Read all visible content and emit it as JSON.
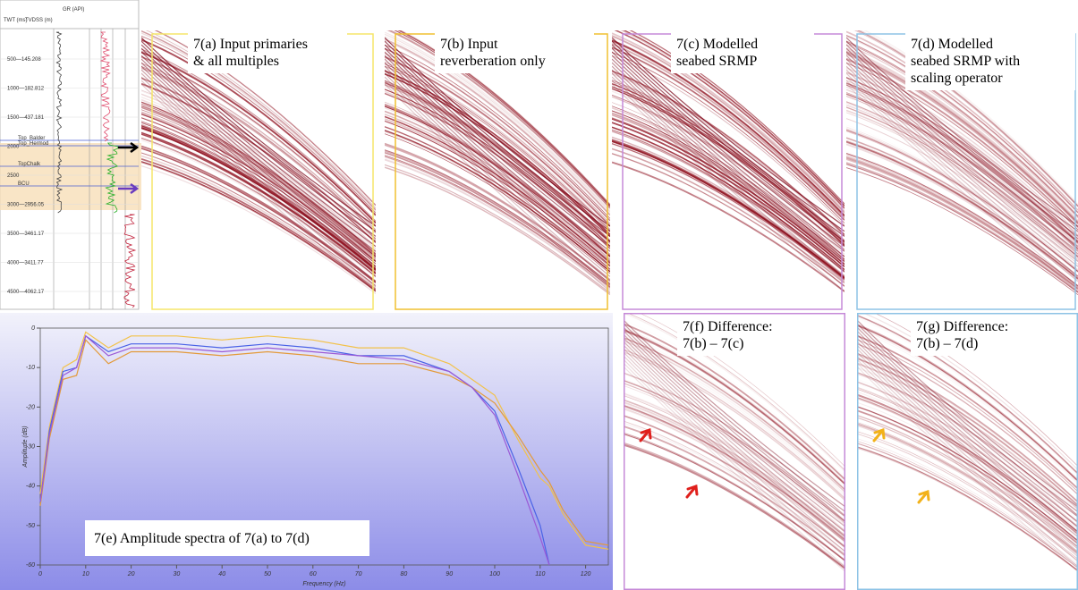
{
  "well_log": {
    "header": [
      "TWT (ms)",
      "TVDSS (m)",
      "GR (API)"
    ],
    "depth_labels": [
      "500—145.208",
      "1000—182.812",
      "1500—437.181",
      "2000",
      "2500",
      "3000—2956.05",
      "3500—3461.17",
      "4000—3411.77",
      "4500—4062.17"
    ],
    "horizons": [
      "Top_Balder",
      "Top_Hermod",
      "TopChalk",
      "BCU"
    ]
  },
  "panels": [
    {
      "caption": [
        "7(a) Input primaries",
        "& all multiples"
      ]
    },
    {
      "caption": [
        "7(b) Input",
        "reverberation only"
      ]
    },
    {
      "caption": [
        "7(c) Modelled",
        "seabed SRMP"
      ]
    },
    {
      "caption": [
        "7(d) Modelled",
        "seabed SRMP with",
        "scaling operator"
      ]
    }
  ],
  "difference_panels": [
    {
      "caption": [
        "7(f) Difference:",
        "7(b) – 7(c)"
      ]
    },
    {
      "caption": [
        "7(g) Difference:",
        "7(b) – 7(d)"
      ]
    }
  ],
  "spectrum": {
    "caption": "7(e) Amplitude spectra of 7(a) to 7(d)",
    "x_label": "Frequency (Hz)",
    "y_label": "Amplitude (dB)",
    "xlim": [
      0,
      125
    ],
    "ylim": [
      -60,
      0
    ],
    "xticks": [
      0,
      10,
      20,
      30,
      40,
      50,
      60,
      70,
      80,
      90,
      100,
      110,
      120
    ],
    "yticks": [
      0,
      -10,
      -20,
      -30,
      -40,
      -50,
      -60
    ],
    "x": [
      0,
      2,
      5,
      8,
      10,
      15,
      20,
      25,
      30,
      40,
      50,
      60,
      70,
      80,
      90,
      95,
      100,
      105,
      110,
      112,
      115,
      120,
      125
    ],
    "series": [
      {
        "color": "#f2c24a",
        "values": [
          -42,
          -25,
          -10,
          -8,
          -1,
          -5,
          -2,
          -2,
          -2,
          -3,
          -2,
          -3,
          -5,
          -5,
          -9,
          -13,
          -17,
          -28,
          -38,
          -40,
          -47,
          -55,
          -56
        ]
      },
      {
        "color": "#e39a3a",
        "values": [
          -45,
          -28,
          -13,
          -12,
          -3,
          -9,
          -6,
          -6,
          -6,
          -7,
          -6,
          -7,
          -9,
          -9,
          -12,
          -15,
          -19,
          -27,
          -36,
          -39,
          -46,
          -54,
          -55
        ]
      },
      {
        "color": "#4a62e6",
        "values": [
          -44,
          -26,
          -11,
          -10,
          -2,
          -6,
          -4,
          -4,
          -4,
          -5,
          -4,
          -5,
          -7,
          -7,
          -11,
          -15,
          -21,
          -35,
          -50,
          -60,
          null,
          null,
          null
        ]
      },
      {
        "color": "#9a5ad6",
        "values": [
          -44,
          -27,
          -12,
          -10,
          -2,
          -7,
          -5,
          -5,
          -5,
          -6,
          -5,
          -6,
          -7,
          -8,
          -11,
          -15,
          -22,
          -37,
          -53,
          -60,
          null,
          null,
          null
        ]
      }
    ]
  }
}
